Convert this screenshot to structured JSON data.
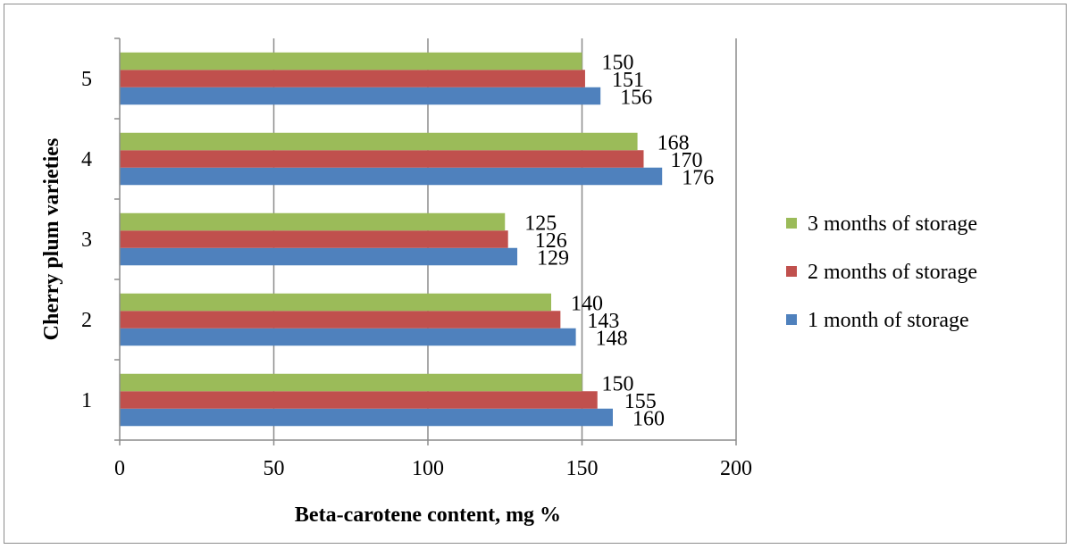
{
  "chart_data": {
    "type": "bar",
    "orientation": "horizontal",
    "categories": [
      "1",
      "2",
      "3",
      "4",
      "5"
    ],
    "series": [
      {
        "name": "1 month of storage",
        "values": [
          160,
          148,
          129,
          176,
          156
        ],
        "color": "#4f81bd"
      },
      {
        "name": "2 months of storage",
        "values": [
          155,
          143,
          126,
          170,
          151
        ],
        "color": "#c0504d"
      },
      {
        "name": "3 months of storage",
        "values": [
          150,
          140,
          125,
          168,
          150
        ],
        "color": "#9bbb59"
      }
    ],
    "xlabel": "Beta-carotene content, mg %",
    "ylabel": "Cherry plum varieties",
    "xlim": [
      0,
      200
    ],
    "xticks": [
      0,
      50,
      100,
      150,
      200
    ],
    "grid": "vertical",
    "legend_position": "right",
    "legend_order": [
      "3 months of storage",
      "2 months of storage",
      "1 month of storage"
    ],
    "data_labels": true
  }
}
